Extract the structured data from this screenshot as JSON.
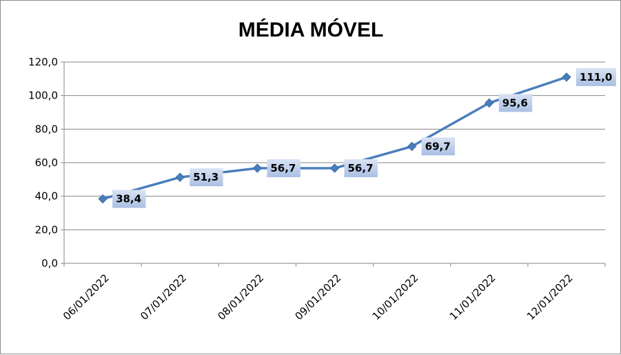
{
  "chart_data": {
    "type": "line",
    "title": "MÉDIA MÓVEL",
    "categories": [
      "06/01/2022",
      "07/01/2022",
      "08/01/2022",
      "09/01/2022",
      "10/01/2022",
      "11/01/2022",
      "12/01/2022"
    ],
    "values": [
      38.4,
      51.3,
      56.7,
      56.7,
      69.7,
      95.6,
      111.0
    ],
    "value_labels": [
      "38,4",
      "51,3",
      "56,7",
      "56,7",
      "69,7",
      "95,6",
      "111,0"
    ],
    "ylim": [
      0,
      120
    ],
    "yticks": [
      0,
      20,
      40,
      60,
      80,
      100,
      120
    ],
    "ytick_labels": [
      "0,0",
      "20,0",
      "40,0",
      "60,0",
      "80,0",
      "100,0",
      "120,0"
    ],
    "grid": true,
    "legend": "none",
    "colors": {
      "line": "#4a7ebb",
      "marker": "#4a7ebb",
      "label_bg": "#b7c9e8",
      "grid": "#868686"
    }
  }
}
